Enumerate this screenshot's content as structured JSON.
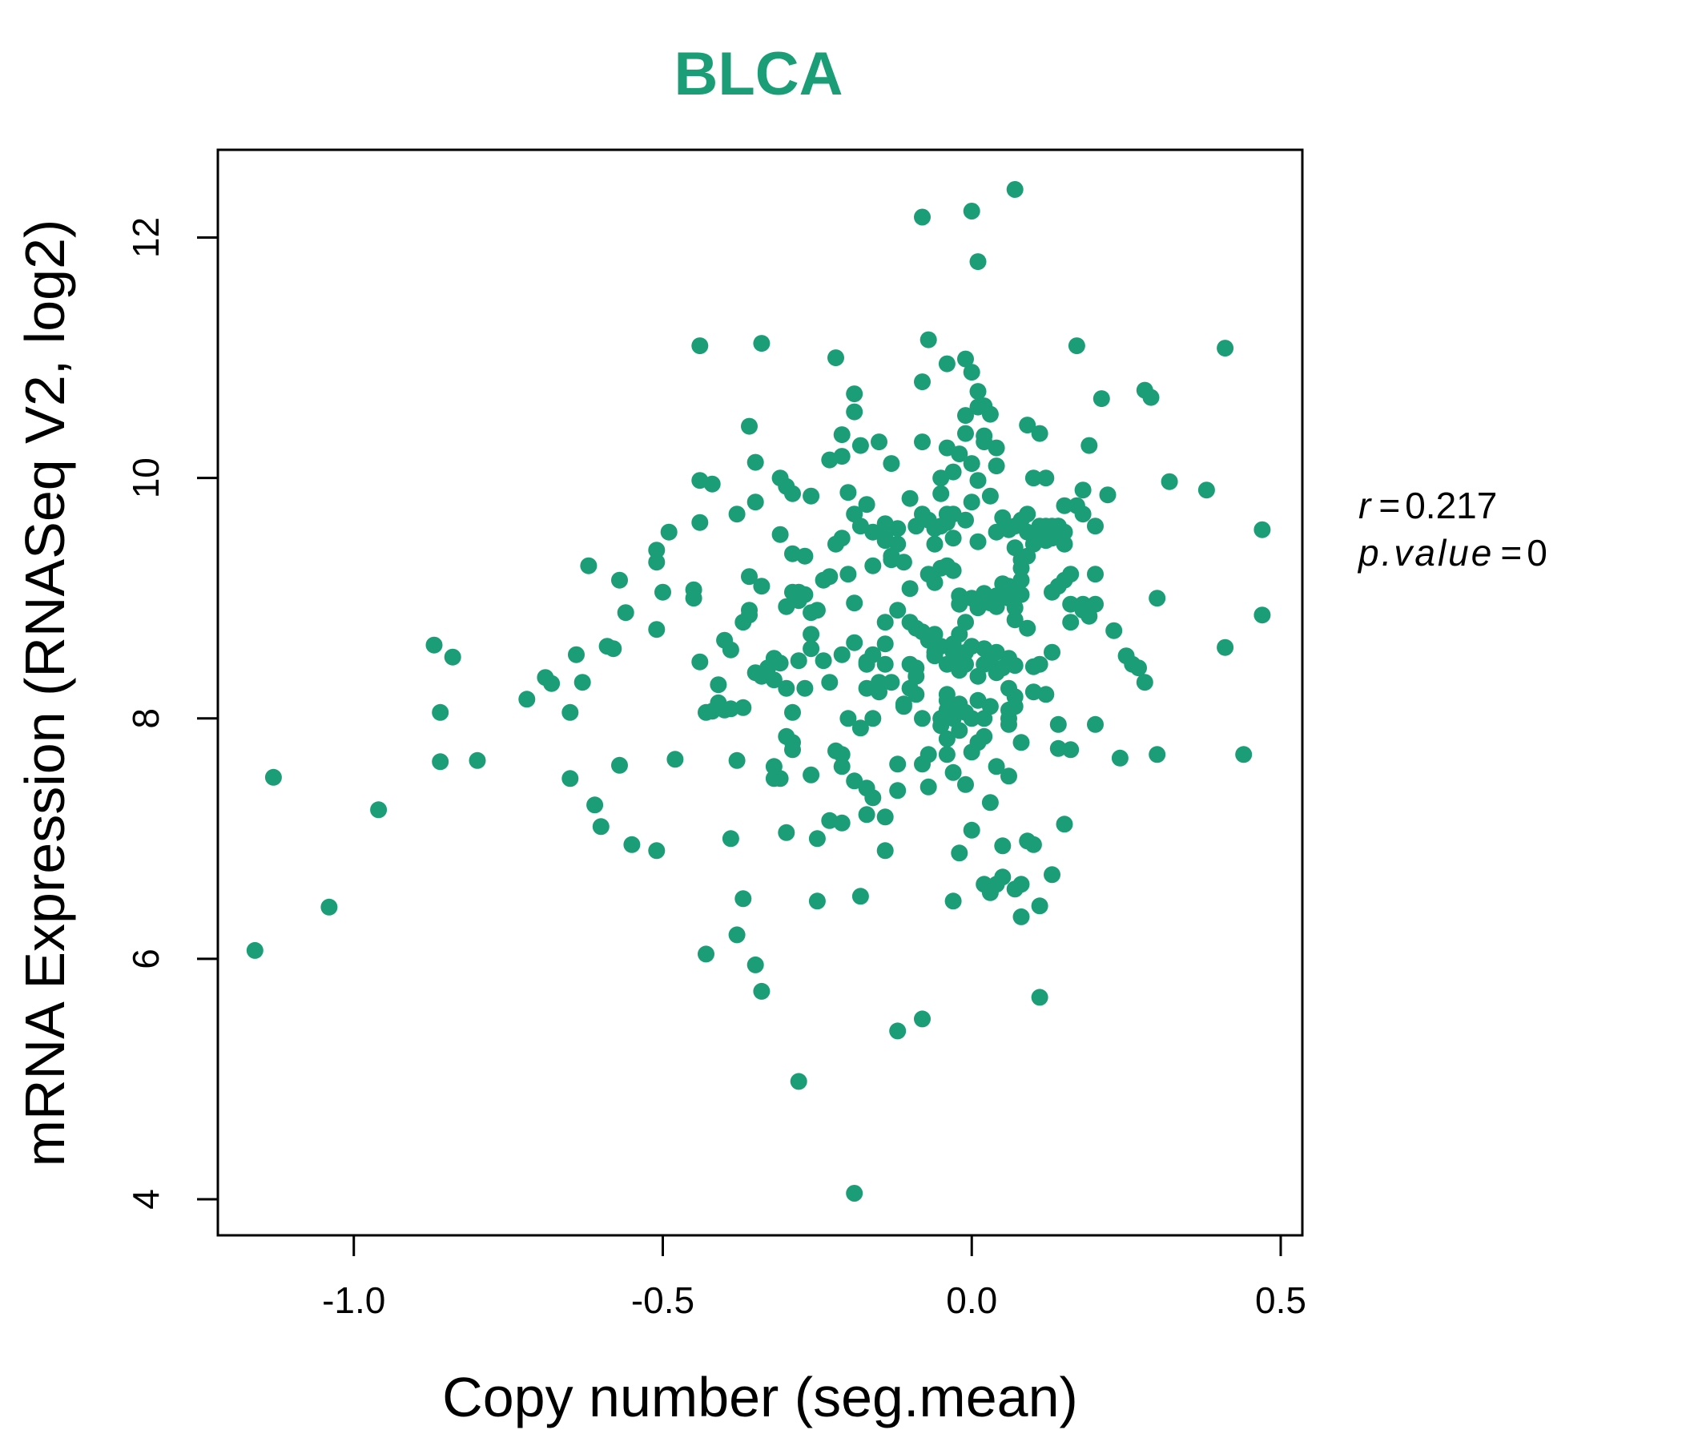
{
  "colors": {
    "point": "#1b9e77",
    "title": "#1b9e77",
    "axis": "#000000"
  },
  "stats": {
    "r_label": "r",
    "r_value": "0.217",
    "p_label": "p.value",
    "p_value": "0"
  },
  "chart_data": {
    "type": "scatter",
    "title": "BLCA",
    "xlabel": "Copy number (seg.mean)",
    "ylabel": "mRNA Expression (RNASeq V2, log2)",
    "xlim": [
      -1.22,
      0.535
    ],
    "ylim": [
      3.7,
      12.73
    ],
    "xticks": [
      -1.0,
      -0.5,
      0.0,
      0.5
    ],
    "xtick_labels": [
      "-1.0",
      "-0.5",
      "0.0",
      "0.5"
    ],
    "yticks": [
      4,
      6,
      8,
      10,
      12
    ],
    "ytick_labels": [
      "4",
      "6",
      "8",
      "10",
      "12"
    ],
    "grid": false,
    "points": [
      [
        -1.16,
        6.07
      ],
      [
        -1.13,
        7.51
      ],
      [
        -1.04,
        6.43
      ],
      [
        -0.96,
        7.24
      ],
      [
        -0.87,
        8.61
      ],
      [
        -0.86,
        7.64
      ],
      [
        -0.86,
        8.05
      ],
      [
        -0.84,
        8.51
      ],
      [
        -0.8,
        7.65
      ],
      [
        -0.72,
        8.16
      ],
      [
        -0.69,
        8.34
      ],
      [
        -0.68,
        8.29
      ],
      [
        -0.65,
        7.5
      ],
      [
        -0.65,
        8.05
      ],
      [
        -0.64,
        8.53
      ],
      [
        -0.63,
        8.3
      ],
      [
        -0.62,
        9.27
      ],
      [
        -0.61,
        7.28
      ],
      [
        -0.6,
        7.1
      ],
      [
        -0.59,
        8.6
      ],
      [
        -0.58,
        8.58
      ],
      [
        -0.57,
        9.15
      ],
      [
        -0.57,
        7.61
      ],
      [
        -0.56,
        8.88
      ],
      [
        -0.55,
        6.95
      ],
      [
        -0.51,
        9.4
      ],
      [
        -0.51,
        9.3
      ],
      [
        -0.51,
        8.74
      ],
      [
        -0.51,
        6.9
      ],
      [
        -0.5,
        9.05
      ],
      [
        -0.49,
        9.55
      ],
      [
        -0.48,
        7.66
      ],
      [
        -0.45,
        9.0
      ],
      [
        -0.45,
        9.07
      ],
      [
        -0.44,
        9.63
      ],
      [
        -0.44,
        8.47
      ],
      [
        -0.44,
        11.1
      ],
      [
        -0.44,
        9.98
      ],
      [
        -0.43,
        8.05
      ],
      [
        -0.43,
        6.04
      ],
      [
        -0.42,
        9.95
      ],
      [
        -0.42,
        8.06
      ],
      [
        -0.41,
        8.28
      ],
      [
        -0.41,
        8.13
      ],
      [
        -0.4,
        8.65
      ],
      [
        -0.4,
        8.07
      ],
      [
        -0.39,
        8.57
      ],
      [
        -0.39,
        7.0
      ],
      [
        -0.39,
        8.08
      ],
      [
        -0.38,
        9.7
      ],
      [
        -0.38,
        7.65
      ],
      [
        -0.38,
        6.2
      ],
      [
        -0.37,
        8.09
      ],
      [
        -0.37,
        8.8
      ],
      [
        -0.37,
        6.5
      ],
      [
        -0.36,
        10.43
      ],
      [
        -0.36,
        8.9
      ],
      [
        -0.36,
        8.86
      ],
      [
        -0.36,
        9.18
      ],
      [
        -0.35,
        9.8
      ],
      [
        -0.35,
        10.13
      ],
      [
        -0.35,
        5.95
      ],
      [
        -0.35,
        8.38
      ],
      [
        -0.34,
        9.1
      ],
      [
        -0.34,
        8.35
      ],
      [
        -0.34,
        11.12
      ],
      [
        -0.34,
        5.73
      ],
      [
        -0.33,
        8.42
      ],
      [
        -0.32,
        8.5
      ],
      [
        -0.32,
        7.5
      ],
      [
        -0.32,
        7.6
      ],
      [
        -0.32,
        8.32
      ],
      [
        -0.31,
        7.5
      ],
      [
        -0.31,
        9.53
      ],
      [
        -0.31,
        8.46
      ],
      [
        -0.31,
        10.0
      ],
      [
        -0.3,
        8.25
      ],
      [
        -0.3,
        7.85
      ],
      [
        -0.3,
        9.93
      ],
      [
        -0.3,
        8.93
      ],
      [
        -0.3,
        7.05
      ],
      [
        -0.29,
        8.05
      ],
      [
        -0.29,
        9.05
      ],
      [
        -0.29,
        7.8
      ],
      [
        -0.29,
        9.87
      ],
      [
        -0.29,
        9.37
      ],
      [
        -0.29,
        7.74
      ],
      [
        -0.28,
        8.48
      ],
      [
        -0.28,
        8.98
      ],
      [
        -0.28,
        9.05
      ],
      [
        -0.28,
        4.98
      ],
      [
        -0.27,
        9.35
      ],
      [
        -0.27,
        9.03
      ],
      [
        -0.27,
        8.25
      ],
      [
        -0.26,
        7.53
      ],
      [
        -0.26,
        8.88
      ],
      [
        -0.26,
        8.58
      ],
      [
        -0.26,
        8.7
      ],
      [
        -0.26,
        9.85
      ],
      [
        -0.25,
        8.9
      ],
      [
        -0.25,
        6.48
      ],
      [
        -0.25,
        7.0
      ],
      [
        -0.24,
        8.48
      ],
      [
        -0.24,
        9.15
      ],
      [
        -0.23,
        10.15
      ],
      [
        -0.23,
        9.18
      ],
      [
        -0.23,
        8.3
      ],
      [
        -0.23,
        7.15
      ],
      [
        -0.22,
        11.0
      ],
      [
        -0.22,
        9.45
      ],
      [
        -0.22,
        7.73
      ],
      [
        -0.21,
        9.5
      ],
      [
        -0.21,
        10.36
      ],
      [
        -0.21,
        7.7
      ],
      [
        -0.21,
        7.13
      ],
      [
        -0.21,
        7.6
      ],
      [
        -0.21,
        10.18
      ],
      [
        -0.21,
        8.53
      ],
      [
        -0.2,
        8.0
      ],
      [
        -0.2,
        9.2
      ],
      [
        -0.2,
        9.88
      ],
      [
        -0.19,
        9.7
      ],
      [
        -0.19,
        10.55
      ],
      [
        -0.19,
        10.7
      ],
      [
        -0.19,
        8.63
      ],
      [
        -0.19,
        4.05
      ],
      [
        -0.19,
        7.48
      ],
      [
        -0.19,
        8.96
      ],
      [
        -0.18,
        7.92
      ],
      [
        -0.18,
        10.27
      ],
      [
        -0.18,
        9.6
      ],
      [
        -0.18,
        6.52
      ],
      [
        -0.17,
        8.45
      ],
      [
        -0.17,
        8.47
      ],
      [
        -0.17,
        9.78
      ],
      [
        -0.17,
        7.42
      ],
      [
        -0.17,
        7.2
      ],
      [
        -0.17,
        8.25
      ],
      [
        -0.16,
        8.0
      ],
      [
        -0.16,
        9.55
      ],
      [
        -0.16,
        8.53
      ],
      [
        -0.16,
        9.27
      ],
      [
        -0.16,
        7.34
      ],
      [
        -0.15,
        8.3
      ],
      [
        -0.15,
        8.22
      ],
      [
        -0.15,
        10.3
      ],
      [
        -0.14,
        9.48
      ],
      [
        -0.14,
        9.62
      ],
      [
        -0.14,
        8.62
      ],
      [
        -0.14,
        8.45
      ],
      [
        -0.14,
        9.5
      ],
      [
        -0.14,
        8.8
      ],
      [
        -0.14,
        7.18
      ],
      [
        -0.14,
        6.9
      ],
      [
        -0.13,
        9.35
      ],
      [
        -0.13,
        10.12
      ],
      [
        -0.13,
        9.32
      ],
      [
        -0.13,
        8.3
      ],
      [
        -0.12,
        7.4
      ],
      [
        -0.12,
        9.58
      ],
      [
        -0.12,
        9.45
      ],
      [
        -0.12,
        7.62
      ],
      [
        -0.12,
        5.4
      ],
      [
        -0.12,
        8.9
      ],
      [
        -0.11,
        9.3
      ],
      [
        -0.11,
        8.1
      ],
      [
        -0.11,
        8.12
      ],
      [
        -0.1,
        8.45
      ],
      [
        -0.1,
        9.08
      ],
      [
        -0.1,
        8.25
      ],
      [
        -0.1,
        8.8
      ],
      [
        -0.1,
        9.83
      ],
      [
        -0.09,
        8.42
      ],
      [
        -0.09,
        8.35
      ],
      [
        -0.09,
        8.75
      ],
      [
        -0.09,
        9.6
      ],
      [
        -0.09,
        8.2
      ],
      [
        -0.08,
        8.72
      ],
      [
        -0.08,
        8.0
      ],
      [
        -0.08,
        9.7
      ],
      [
        -0.08,
        10.8
      ],
      [
        -0.08,
        12.17
      ],
      [
        -0.08,
        5.5
      ],
      [
        -0.08,
        7.62
      ],
      [
        -0.08,
        10.3
      ],
      [
        -0.07,
        11.15
      ],
      [
        -0.07,
        8.65
      ],
      [
        -0.07,
        9.2
      ],
      [
        -0.07,
        9.65
      ],
      [
        -0.07,
        7.7
      ],
      [
        -0.07,
        7.43
      ],
      [
        -0.06,
        9.45
      ],
      [
        -0.06,
        8.55
      ],
      [
        -0.06,
        9.58
      ],
      [
        -0.06,
        8.7
      ],
      [
        -0.06,
        9.13
      ],
      [
        -0.06,
        8.52
      ],
      [
        -0.05,
        9.87
      ],
      [
        -0.05,
        9.6
      ],
      [
        -0.05,
        9.25
      ],
      [
        -0.05,
        7.94
      ],
      [
        -0.05,
        8.6
      ],
      [
        -0.05,
        8.0
      ],
      [
        -0.05,
        10.0
      ],
      [
        -0.04,
        10.95
      ],
      [
        -0.04,
        7.7
      ],
      [
        -0.04,
        8.2
      ],
      [
        -0.04,
        8.45
      ],
      [
        -0.04,
        8.15
      ],
      [
        -0.04,
        7.83
      ],
      [
        -0.04,
        9.7
      ],
      [
        -0.04,
        8.07
      ],
      [
        -0.04,
        9.63
      ],
      [
        -0.04,
        10.25
      ],
      [
        -0.04,
        9.27
      ],
      [
        -0.03,
        9.7
      ],
      [
        -0.03,
        8.55
      ],
      [
        -0.03,
        8.0
      ],
      [
        -0.03,
        7.55
      ],
      [
        -0.03,
        6.48
      ],
      [
        -0.03,
        10.05
      ],
      [
        -0.03,
        8.62
      ],
      [
        -0.03,
        9.23
      ],
      [
        -0.03,
        9.5
      ],
      [
        -0.02,
        9.02
      ],
      [
        -0.02,
        8.95
      ],
      [
        -0.02,
        8.7
      ],
      [
        -0.02,
        8.12
      ],
      [
        -0.02,
        7.9
      ],
      [
        -0.02,
        6.88
      ],
      [
        -0.02,
        8.4
      ],
      [
        -0.02,
        10.2
      ],
      [
        -0.02,
        8.5
      ],
      [
        -0.01,
        10.37
      ],
      [
        -0.01,
        10.99
      ],
      [
        -0.01,
        7.45
      ],
      [
        -0.01,
        8.45
      ],
      [
        -0.01,
        8.55
      ],
      [
        -0.01,
        8.8
      ],
      [
        -0.01,
        9.65
      ],
      [
        -0.01,
        8.05
      ],
      [
        -0.01,
        10.52
      ],
      [
        0.0,
        12.22
      ],
      [
        0.0,
        10.12
      ],
      [
        0.0,
        10.88
      ],
      [
        0.0,
        9.8
      ],
      [
        0.0,
        7.07
      ],
      [
        0.0,
        7.72
      ],
      [
        0.0,
        8.0
      ],
      [
        0.0,
        8.6
      ],
      [
        0.0,
        9.0
      ],
      [
        0.01,
        10.59
      ],
      [
        0.01,
        9.98
      ],
      [
        0.01,
        8.15
      ],
      [
        0.01,
        8.35
      ],
      [
        0.01,
        8.92
      ],
      [
        0.01,
        10.72
      ],
      [
        0.01,
        7.8
      ],
      [
        0.01,
        9.47
      ],
      [
        0.01,
        11.8
      ],
      [
        0.02,
        10.3
      ],
      [
        0.02,
        8.58
      ],
      [
        0.02,
        10.6
      ],
      [
        0.02,
        8.0
      ],
      [
        0.02,
        6.62
      ],
      [
        0.02,
        7.85
      ],
      [
        0.02,
        9.04
      ],
      [
        0.02,
        10.35
      ],
      [
        0.02,
        8.97
      ],
      [
        0.02,
        8.45
      ],
      [
        0.03,
        8.96
      ],
      [
        0.03,
        10.53
      ],
      [
        0.03,
        9.85
      ],
      [
        0.03,
        9.0
      ],
      [
        0.03,
        7.3
      ],
      [
        0.03,
        8.5
      ],
      [
        0.03,
        8.1
      ],
      [
        0.03,
        6.55
      ],
      [
        0.04,
        9.55
      ],
      [
        0.04,
        8.38
      ],
      [
        0.04,
        6.62
      ],
      [
        0.04,
        10.25
      ],
      [
        0.04,
        8.55
      ],
      [
        0.04,
        7.6
      ],
      [
        0.04,
        10.1
      ],
      [
        0.04,
        8.93
      ],
      [
        0.04,
        9.02
      ],
      [
        0.05,
        6.68
      ],
      [
        0.05,
        6.94
      ],
      [
        0.05,
        8.42
      ],
      [
        0.05,
        9.12
      ],
      [
        0.05,
        9.67
      ],
      [
        0.06,
        8.25
      ],
      [
        0.06,
        9.05
      ],
      [
        0.06,
        8.0
      ],
      [
        0.06,
        8.07
      ],
      [
        0.06,
        9.57
      ],
      [
        0.06,
        9.1
      ],
      [
        0.06,
        7.52
      ],
      [
        0.06,
        9.0
      ],
      [
        0.06,
        8.5
      ],
      [
        0.06,
        7.95
      ],
      [
        0.07,
        8.82
      ],
      [
        0.07,
        12.4
      ],
      [
        0.07,
        9.42
      ],
      [
        0.07,
        9.6
      ],
      [
        0.07,
        8.44
      ],
      [
        0.07,
        6.58
      ],
      [
        0.07,
        8.1
      ],
      [
        0.07,
        8.92
      ],
      [
        0.07,
        8.18
      ],
      [
        0.08,
        6.62
      ],
      [
        0.08,
        6.35
      ],
      [
        0.08,
        9.32
      ],
      [
        0.08,
        9.65
      ],
      [
        0.08,
        9.15
      ],
      [
        0.08,
        9.25
      ],
      [
        0.08,
        7.8
      ],
      [
        0.08,
        9.03
      ],
      [
        0.09,
        8.75
      ],
      [
        0.09,
        6.98
      ],
      [
        0.09,
        9.7
      ],
      [
        0.09,
        10.44
      ],
      [
        0.09,
        9.35
      ],
      [
        0.09,
        9.55
      ],
      [
        0.1,
        6.95
      ],
      [
        0.1,
        10.0
      ],
      [
        0.1,
        9.45
      ],
      [
        0.1,
        8.22
      ],
      [
        0.1,
        8.43
      ],
      [
        0.11,
        6.44
      ],
      [
        0.11,
        9.6
      ],
      [
        0.11,
        5.68
      ],
      [
        0.11,
        10.37
      ],
      [
        0.11,
        8.45
      ],
      [
        0.11,
        9.5
      ],
      [
        0.12,
        9.5
      ],
      [
        0.12,
        9.6
      ],
      [
        0.12,
        10.0
      ],
      [
        0.12,
        8.2
      ],
      [
        0.12,
        9.48
      ],
      [
        0.13,
        6.7
      ],
      [
        0.13,
        8.55
      ],
      [
        0.13,
        9.5
      ],
      [
        0.13,
        9.6
      ],
      [
        0.13,
        9.05
      ],
      [
        0.14,
        9.6
      ],
      [
        0.14,
        9.1
      ],
      [
        0.14,
        7.95
      ],
      [
        0.14,
        7.75
      ],
      [
        0.14,
        9.6
      ],
      [
        0.15,
        9.77
      ],
      [
        0.15,
        9.45
      ],
      [
        0.15,
        9.55
      ],
      [
        0.15,
        9.15
      ],
      [
        0.15,
        7.12
      ],
      [
        0.16,
        8.8
      ],
      [
        0.16,
        9.2
      ],
      [
        0.16,
        7.74
      ],
      [
        0.16,
        8.95
      ],
      [
        0.17,
        9.77
      ],
      [
        0.17,
        11.1
      ],
      [
        0.18,
        9.9
      ],
      [
        0.18,
        8.9
      ],
      [
        0.18,
        8.95
      ],
      [
        0.18,
        9.7
      ],
      [
        0.19,
        10.27
      ],
      [
        0.19,
        8.85
      ],
      [
        0.2,
        9.6
      ],
      [
        0.2,
        9.2
      ],
      [
        0.2,
        8.95
      ],
      [
        0.2,
        7.95
      ],
      [
        0.21,
        10.66
      ],
      [
        0.22,
        9.86
      ],
      [
        0.23,
        8.73
      ],
      [
        0.24,
        7.67
      ],
      [
        0.25,
        8.52
      ],
      [
        0.26,
        8.45
      ],
      [
        0.27,
        8.42
      ],
      [
        0.28,
        8.3
      ],
      [
        0.28,
        10.73
      ],
      [
        0.29,
        10.67
      ],
      [
        0.3,
        9.0
      ],
      [
        0.3,
        7.7
      ],
      [
        0.32,
        9.97
      ],
      [
        0.38,
        9.9
      ],
      [
        0.41,
        8.59
      ],
      [
        0.41,
        11.08
      ],
      [
        0.44,
        7.7
      ],
      [
        0.47,
        8.86
      ],
      [
        0.47,
        9.57
      ]
    ]
  }
}
